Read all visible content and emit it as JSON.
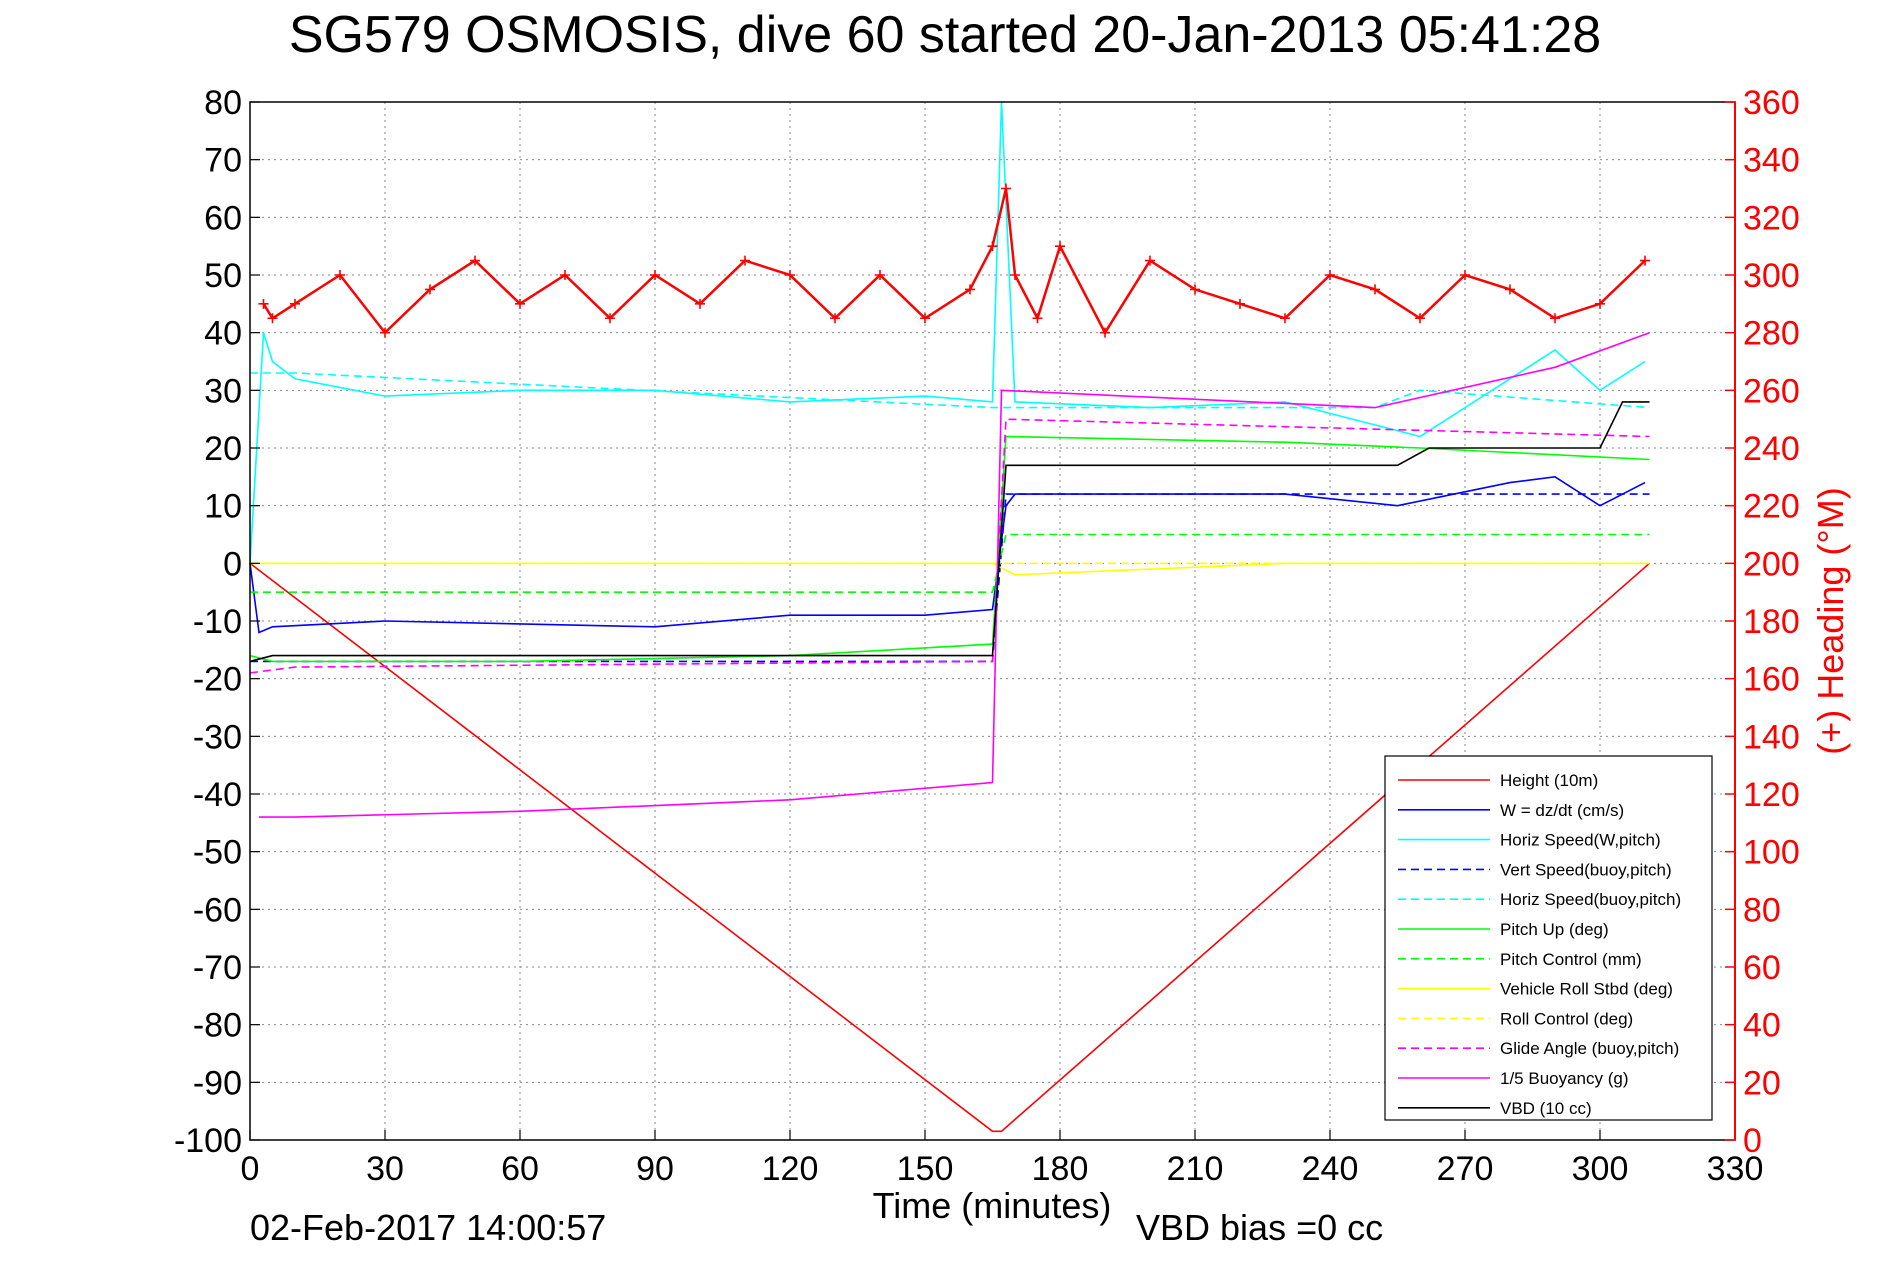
{
  "title": "SG579 OSMOSIS, dive 60 started 20-Jan-2013 05:41:28",
  "footer": {
    "timestamp": "02-Feb-2017 14:00:57",
    "vbd_bias": "VBD bias =0 cc"
  },
  "colors": {
    "height": "#ff0000",
    "w": "#0000ff",
    "horiz": "#00ffff",
    "pitch": "#00ff00",
    "roll": "#ffff00",
    "glide": "#ff00ff",
    "buoyancy": "#ff00ff",
    "vbd": "#000000",
    "heading": "#ff0000",
    "right_axis": "#ff0000"
  },
  "chart_data": {
    "type": "line",
    "xlabel": "Time (minutes)",
    "ylabel_right": "(+) Heading (°M)",
    "xlim": [
      0,
      330
    ],
    "ylim": [
      -100,
      80
    ],
    "ylim_right": [
      0,
      360
    ],
    "grid": true,
    "legend_position": "bottom-right",
    "x_ticks": [
      "0",
      "30",
      "60",
      "90",
      "120",
      "150",
      "180",
      "210",
      "240",
      "270",
      "300",
      "330"
    ],
    "y_ticks": [
      "80",
      "70",
      "60",
      "50",
      "40",
      "30",
      "20",
      "10",
      "0",
      "-10",
      "-20",
      "-30",
      "-40",
      "-50",
      "-60",
      "-70",
      "-80",
      "-90",
      "-100"
    ],
    "y_right_ticks": [
      "360",
      "340",
      "320",
      "300",
      "280",
      "260",
      "240",
      "220",
      "200",
      "180",
      "160",
      "140",
      "120",
      "100",
      "80",
      "60",
      "40",
      "20",
      "0"
    ],
    "legend": [
      {
        "label": "Height (10m)",
        "color": "#ff0000",
        "style": "solid"
      },
      {
        "label": "W = dz/dt (cm/s)",
        "color": "#0000ff",
        "style": "solid"
      },
      {
        "label": "Horiz Speed(W,pitch)",
        "color": "#00ffff",
        "style": "solid"
      },
      {
        "label": "Vert Speed(buoy,pitch)",
        "color": "#0000ff",
        "style": "dashed"
      },
      {
        "label": "Horiz Speed(buoy,pitch)",
        "color": "#00ffff",
        "style": "dashed"
      },
      {
        "label": "Pitch Up (deg)",
        "color": "#00ff00",
        "style": "solid"
      },
      {
        "label": "Pitch Control (mm)",
        "color": "#00ff00",
        "style": "dashed"
      },
      {
        "label": "Vehicle Roll Stbd (deg)",
        "color": "#ffff00",
        "style": "solid"
      },
      {
        "label": "Roll Control (deg)",
        "color": "#ffff00",
        "style": "dashed"
      },
      {
        "label": "Glide Angle (buoy,pitch)",
        "color": "#ff00ff",
        "style": "dashed"
      },
      {
        "label": "1/5 Buoyancy (g)",
        "color": "#ff00ff",
        "style": "solid"
      },
      {
        "label": "VBD (10 cc)",
        "color": "#000000",
        "style": "solid"
      }
    ],
    "series": [
      {
        "name": "Height (10m)",
        "x": [
          0,
          165,
          167,
          311
        ],
        "y": [
          0,
          -98.5,
          -98.5,
          0
        ]
      },
      {
        "name": "W = dz/dt (cm/s)",
        "x": [
          0,
          2,
          5,
          30,
          60,
          90,
          120,
          150,
          165,
          168,
          170,
          200,
          230,
          255,
          280,
          290,
          300,
          310
        ],
        "y": [
          0,
          -12,
          -11,
          -10,
          -10.5,
          -11,
          -9,
          -9,
          -8,
          10,
          12,
          12,
          12,
          10,
          14,
          15,
          10,
          14
        ]
      },
      {
        "name": "Horiz Speed(W,pitch)",
        "x": [
          0,
          3,
          5,
          10,
          30,
          60,
          90,
          120,
          150,
          165,
          167,
          170,
          200,
          230,
          260,
          290,
          300,
          310
        ],
        "y": [
          0,
          40,
          35,
          32,
          29,
          30,
          30,
          28,
          29,
          28,
          80,
          28,
          27,
          28,
          22,
          37,
          30,
          35
        ]
      },
      {
        "name": "Vert Speed(buoy,pitch)",
        "x": [
          0,
          165,
          168,
          311
        ],
        "y": [
          -17,
          -17,
          12,
          12
        ]
      },
      {
        "name": "Horiz Speed(buoy,pitch)",
        "x": [
          0,
          10,
          165,
          168,
          250,
          260,
          311
        ],
        "y": [
          33,
          33,
          27,
          27,
          27,
          30,
          27
        ]
      },
      {
        "name": "Pitch Up (deg)",
        "x": [
          0,
          5,
          60,
          120,
          165,
          168,
          230,
          260,
          311
        ],
        "y": [
          -16,
          -17,
          -17,
          -16,
          -14,
          22,
          21,
          20,
          18
        ]
      },
      {
        "name": "Pitch Control (mm)",
        "x": [
          0,
          165,
          168,
          311
        ],
        "y": [
          -5,
          -5,
          5,
          5
        ]
      },
      {
        "name": "Vehicle Roll Stbd (deg)",
        "x": [
          0,
          10,
          60,
          120,
          165,
          170,
          230,
          290,
          311
        ],
        "y": [
          0,
          0,
          0,
          0,
          0,
          -2,
          0,
          0,
          0
        ]
      },
      {
        "name": "Roll Control (deg)",
        "x": [
          0,
          165,
          170,
          311
        ],
        "y": [
          0,
          0,
          0,
          0
        ]
      },
      {
        "name": "Glide Angle (buoy,pitch)",
        "x": [
          0,
          10,
          165,
          168,
          311
        ],
        "y": [
          -19,
          -18,
          -17,
          25,
          22
        ]
      },
      {
        "name": "1/5 Buoyancy (g)",
        "x": [
          2,
          10,
          60,
          120,
          165,
          167,
          250,
          290,
          311
        ],
        "y": [
          -44,
          -44,
          -43,
          -41,
          -38,
          30,
          27,
          34,
          40
        ]
      },
      {
        "name": "VBD (10 cc)",
        "x": [
          0,
          5,
          165,
          168,
          255,
          262,
          300,
          305,
          311
        ],
        "y": [
          -17,
          -16,
          -16,
          17,
          17,
          20,
          20,
          28,
          28
        ]
      },
      {
        "name": "(+) Heading (°M)",
        "axis": "right",
        "x": [
          3,
          5,
          10,
          20,
          30,
          40,
          50,
          60,
          70,
          80,
          90,
          100,
          110,
          120,
          130,
          140,
          150,
          160,
          165,
          168,
          170,
          175,
          180,
          190,
          200,
          210,
          220,
          230,
          240,
          250,
          260,
          270,
          280,
          290,
          300,
          310
        ],
        "y": [
          290,
          285,
          290,
          300,
          280,
          295,
          305,
          290,
          300,
          285,
          300,
          290,
          305,
          300,
          285,
          300,
          285,
          295,
          310,
          330,
          300,
          285,
          310,
          280,
          305,
          295,
          290,
          285,
          300,
          295,
          285,
          300,
          295,
          285,
          290,
          305
        ]
      }
    ]
  }
}
